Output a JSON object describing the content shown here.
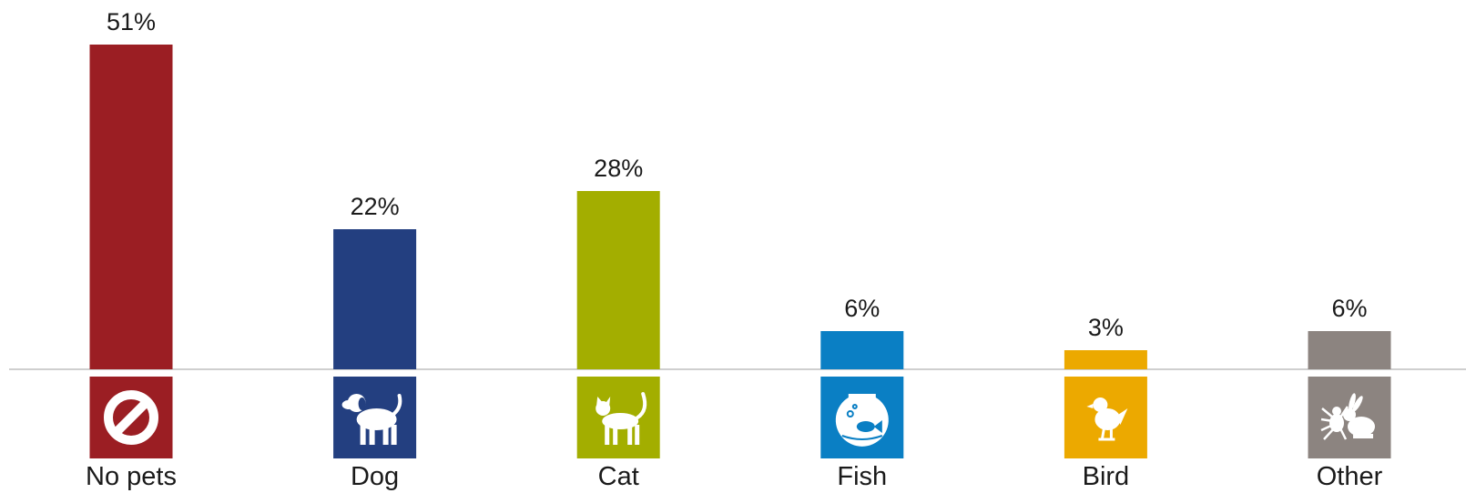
{
  "chart_data": {
    "type": "bar",
    "categories": [
      "No pets",
      "Dog",
      "Cat",
      "Fish",
      "Bird",
      "Other"
    ],
    "values": [
      51,
      22,
      28,
      6,
      3,
      6
    ],
    "value_labels": [
      "51%",
      "22%",
      "28%",
      "6%",
      "3%",
      "6%"
    ],
    "colors": [
      "#9b1e23",
      "#233f80",
      "#a3ae00",
      "#0a7fc4",
      "#eca900",
      "#8c8480"
    ],
    "icons": [
      "no-symbol-icon",
      "dog-icon",
      "cat-icon",
      "fishbowl-icon",
      "bird-icon",
      "spider-rabbit-icon"
    ],
    "title": "",
    "xlabel": "",
    "ylabel": "",
    "ylim": [
      0,
      51
    ],
    "grid": false,
    "legend": "none"
  }
}
